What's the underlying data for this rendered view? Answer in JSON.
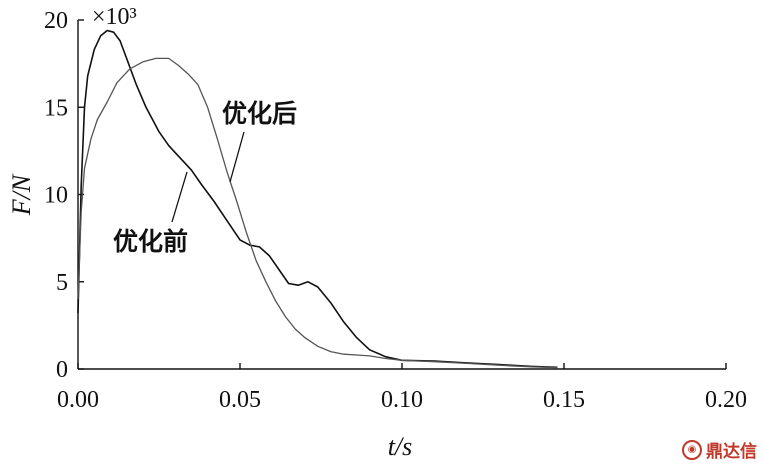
{
  "chart_data": {
    "type": "line",
    "xlabel": "t/s",
    "ylabel": "F/N",
    "multiplier": "×10³",
    "xlim": [
      0,
      0.2
    ],
    "ylim": [
      0,
      20
    ],
    "xticks": [
      0,
      0.05,
      0.1,
      0.15,
      0.2
    ],
    "xtick_labels": [
      "0.00",
      "0.05",
      "0.10",
      "0.15",
      "0.20"
    ],
    "yticks": [
      0,
      5,
      10,
      15,
      20
    ],
    "ytick_labels": [
      "0",
      "5",
      "10",
      "15",
      "20"
    ],
    "grid": false,
    "series": [
      {
        "name": "优化前",
        "color": "#111111",
        "x": [
          0,
          0.001,
          0.002,
          0.003,
          0.005,
          0.007,
          0.009,
          0.011,
          0.013,
          0.015,
          0.018,
          0.021,
          0.025,
          0.028,
          0.031,
          0.035,
          0.038,
          0.042,
          0.046,
          0.05,
          0.053,
          0.056,
          0.059,
          0.062,
          0.065,
          0.068,
          0.071,
          0.074,
          0.078,
          0.082,
          0.086,
          0.09,
          0.095,
          0.1,
          0.11,
          0.12,
          0.13,
          0.14,
          0.148
        ],
        "values": [
          3.2,
          10.5,
          15.0,
          16.8,
          18.3,
          19.1,
          19.4,
          19.3,
          18.8,
          17.8,
          16.3,
          15.0,
          13.6,
          12.8,
          12.2,
          11.4,
          10.6,
          9.6,
          8.5,
          7.4,
          7.1,
          7.0,
          6.5,
          5.7,
          4.9,
          4.8,
          5.0,
          4.7,
          3.8,
          2.7,
          1.8,
          1.1,
          0.7,
          0.5,
          0.45,
          0.35,
          0.25,
          0.15,
          0.1
        ]
      },
      {
        "name": "优化后",
        "color": "#555555",
        "x": [
          0,
          0.001,
          0.002,
          0.004,
          0.006,
          0.009,
          0.012,
          0.016,
          0.02,
          0.024,
          0.028,
          0.031,
          0.034,
          0.037,
          0.04,
          0.043,
          0.046,
          0.049,
          0.052,
          0.055,
          0.058,
          0.061,
          0.064,
          0.067,
          0.07,
          0.074,
          0.078,
          0.082,
          0.086,
          0.09,
          0.095,
          0.1,
          0.11,
          0.12,
          0.13,
          0.14,
          0.148
        ],
        "values": [
          4.0,
          9.0,
          11.5,
          13.2,
          14.3,
          15.3,
          16.4,
          17.2,
          17.6,
          17.8,
          17.8,
          17.4,
          16.9,
          16.3,
          15.0,
          13.2,
          11.3,
          9.6,
          7.8,
          6.2,
          5.0,
          3.9,
          3.0,
          2.3,
          1.8,
          1.3,
          1.0,
          0.85,
          0.8,
          0.75,
          0.6,
          0.5,
          0.42,
          0.32,
          0.22,
          0.12,
          0.08
        ]
      }
    ],
    "annotations": [
      {
        "text": "优化后",
        "series": 1
      },
      {
        "text": "优化前",
        "series": 0
      }
    ]
  },
  "watermark": {
    "text": "鼎达信",
    "icon": "logo-icon"
  }
}
